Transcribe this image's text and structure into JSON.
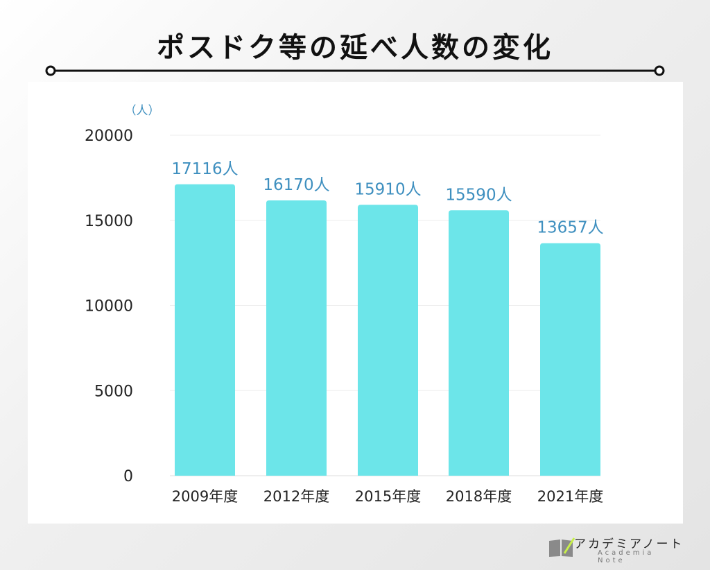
{
  "title": "ポスドク等の延べ人数の変化",
  "chart_data": {
    "type": "bar",
    "title": "ポスドク等の延べ人数の変化",
    "ylabel": "（人）",
    "xlabel": "",
    "categories": [
      "2009年度",
      "2012年度",
      "2015年度",
      "2018年度",
      "2021年度"
    ],
    "values": [
      17116,
      16170,
      15910,
      15590,
      13657
    ],
    "data_labels": [
      "17116人",
      "16170人",
      "15910人",
      "15590人",
      "13657人"
    ],
    "ylim": [
      0,
      20000
    ],
    "yticks": [
      0,
      5000,
      10000,
      15000,
      20000
    ],
    "grid": true,
    "bar_color": "#6ce5e9",
    "label_color": "#3e8fbf"
  },
  "logo": {
    "jp": "アカデミアノート",
    "en": "Academia Note"
  }
}
